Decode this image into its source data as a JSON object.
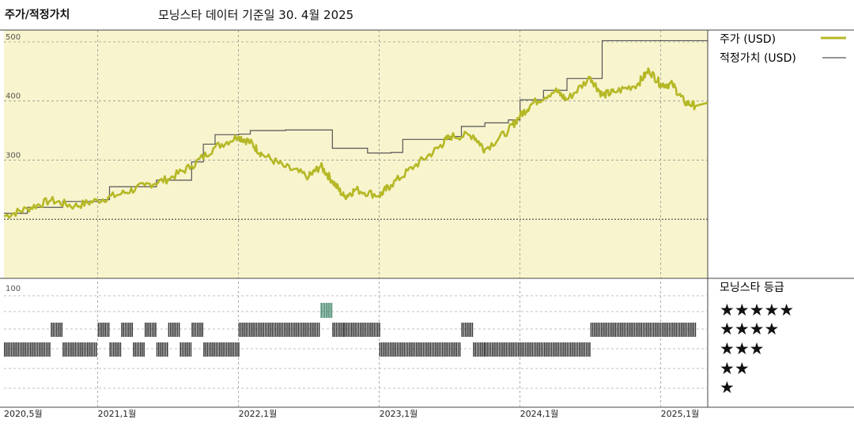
{
  "header": {
    "title": "주가/적정가치",
    "subtitle": "모닝스타 데이터 기준일 30. 4월 2025"
  },
  "legend": {
    "price_label": "주가 (USD)",
    "fair_value_label": "적정가치 (USD)",
    "rating_label": "모닝스타 등급"
  },
  "rating_levels": [
    "★★★★★",
    "★★★★",
    "★★★",
    "★★",
    "★"
  ],
  "colors": {
    "price_line": "#b5b825",
    "fair_value_line": "#555555",
    "plot_background": "#f8f4cd",
    "five_star": "#3f8468",
    "rating_bar": "#333333"
  },
  "chart_data": {
    "type": "line",
    "ylim": [
      100,
      520
    ],
    "yticks": [
      500,
      400,
      300
    ],
    "rating_axis_tick": "100",
    "x_tick_labels": [
      "2020,5월",
      "2021,1월",
      "2022,1월",
      "2023,1월",
      "2024,1월",
      "2025,1월"
    ],
    "x_range": [
      "2020-05",
      "2025-04"
    ],
    "series": [
      {
        "name": "주가 (USD)",
        "points": [
          [
            "2020-05",
            205
          ],
          [
            "2020-07",
            218
          ],
          [
            "2020-09",
            232
          ],
          [
            "2020-11",
            222
          ],
          [
            "2021-01",
            232
          ],
          [
            "2021-03",
            243
          ],
          [
            "2021-05",
            257
          ],
          [
            "2021-07",
            268
          ],
          [
            "2021-09",
            290
          ],
          [
            "2021-11",
            322
          ],
          [
            "2022-01",
            340
          ],
          [
            "2022-02",
            330
          ],
          [
            "2022-03",
            310
          ],
          [
            "2022-05",
            288
          ],
          [
            "2022-07",
            272
          ],
          [
            "2022-08",
            290
          ],
          [
            "2022-09",
            265
          ],
          [
            "2022-10",
            238
          ],
          [
            "2022-11",
            250
          ],
          [
            "2023-01",
            240
          ],
          [
            "2023-02",
            258
          ],
          [
            "2023-04",
            290
          ],
          [
            "2023-06",
            320
          ],
          [
            "2023-07",
            340
          ],
          [
            "2023-09",
            342
          ],
          [
            "2023-10",
            318
          ],
          [
            "2023-12",
            350
          ],
          [
            "2024-01",
            375
          ],
          [
            "2024-02",
            395
          ],
          [
            "2024-04",
            418
          ],
          [
            "2024-05",
            402
          ],
          [
            "2024-07",
            440
          ],
          [
            "2024-08",
            410
          ],
          [
            "2024-09",
            415
          ],
          [
            "2024-11",
            428
          ],
          [
            "2024-12",
            452
          ],
          [
            "2025-01",
            428
          ],
          [
            "2025-02",
            428
          ],
          [
            "2025-03",
            398
          ],
          [
            "2025-04",
            392
          ]
        ]
      },
      {
        "name": "적정가치 (USD)",
        "steps": [
          [
            "2020-05",
            210
          ],
          [
            "2020-07",
            220
          ],
          [
            "2020-10",
            230
          ],
          [
            "2021-01",
            233
          ],
          [
            "2021-02",
            255
          ],
          [
            "2021-06",
            266
          ],
          [
            "2021-09",
            297
          ],
          [
            "2021-10",
            327
          ],
          [
            "2021-11",
            343
          ],
          [
            "2022-01",
            344
          ],
          [
            "2022-02",
            350
          ],
          [
            "2022-05",
            351
          ],
          [
            "2022-09",
            320
          ],
          [
            "2022-12",
            312
          ],
          [
            "2023-02",
            313
          ],
          [
            "2023-03",
            335
          ],
          [
            "2023-07",
            340
          ],
          [
            "2023-08",
            357
          ],
          [
            "2023-10",
            363
          ],
          [
            "2023-12",
            368
          ],
          [
            "2024-01",
            402
          ],
          [
            "2024-03",
            418
          ],
          [
            "2024-05",
            438
          ],
          [
            "2024-08",
            502
          ],
          [
            "2025-04",
            502
          ]
        ]
      }
    ],
    "star_rating_segments": [
      {
        "from": "2020-05",
        "to": "2020-09",
        "stars": 3
      },
      {
        "from": "2020-09",
        "to": "2020-10",
        "stars": 4
      },
      {
        "from": "2020-10",
        "to": "2021-01",
        "stars": 3
      },
      {
        "from": "2021-01",
        "to": "2021-02",
        "stars": 4
      },
      {
        "from": "2021-02",
        "to": "2021-03",
        "stars": 3
      },
      {
        "from": "2021-03",
        "to": "2021-04",
        "stars": 4
      },
      {
        "from": "2021-04",
        "to": "2021-05",
        "stars": 3
      },
      {
        "from": "2021-05",
        "to": "2021-06",
        "stars": 4
      },
      {
        "from": "2021-06",
        "to": "2021-07",
        "stars": 3
      },
      {
        "from": "2021-07",
        "to": "2021-08",
        "stars": 4
      },
      {
        "from": "2021-08",
        "to": "2021-09",
        "stars": 3
      },
      {
        "from": "2021-09",
        "to": "2021-10",
        "stars": 4
      },
      {
        "from": "2021-10",
        "to": "2022-01",
        "stars": 3
      },
      {
        "from": "2022-01",
        "to": "2022-08",
        "stars": 4
      },
      {
        "from": "2022-08",
        "to": "2022-09",
        "stars": 5
      },
      {
        "from": "2022-09",
        "to": "2022-10",
        "stars": 4
      },
      {
        "from": "2022-10",
        "to": "2023-01",
        "stars": 4
      },
      {
        "from": "2023-01",
        "to": "2023-08",
        "stars": 3
      },
      {
        "from": "2023-08",
        "to": "2023-09",
        "stars": 4
      },
      {
        "from": "2023-09",
        "to": "2023-10",
        "stars": 3
      },
      {
        "from": "2023-10",
        "to": "2024-07",
        "stars": 3
      },
      {
        "from": "2024-07",
        "to": "2025-04",
        "stars": 4
      }
    ]
  }
}
